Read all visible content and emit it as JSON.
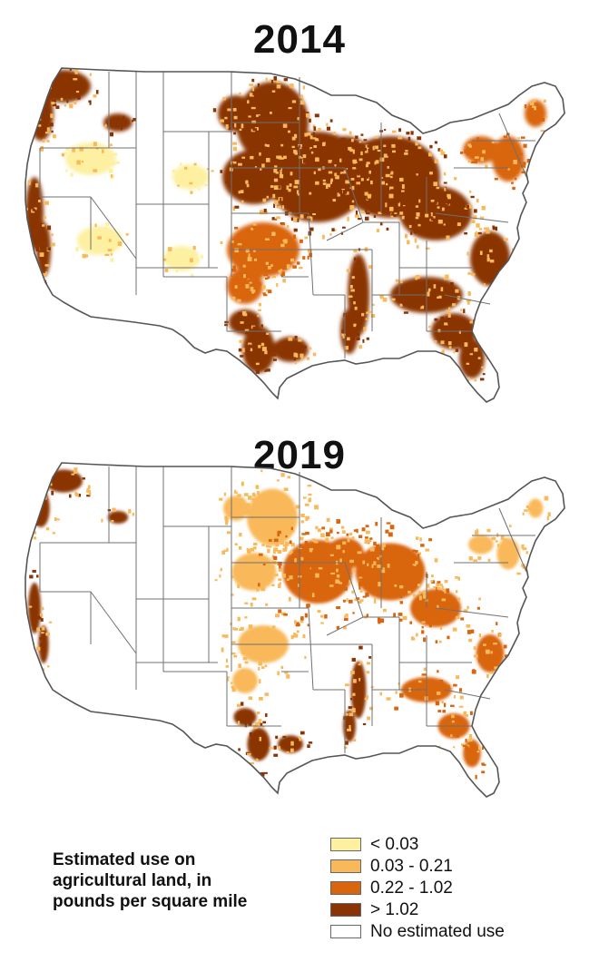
{
  "maps": [
    {
      "title": "2014",
      "intensity_by_region": {
        "northwest": "> 1.02",
        "california": "> 1.02",
        "northern_plains": "> 1.02",
        "corn_belt": "> 1.02",
        "southern_plains": "0.22 - 1.02",
        "texas_gulf": "> 1.02",
        "mississippi_delta": "> 1.02",
        "southeast": "> 1.02",
        "northeast": "0.22 - 1.02",
        "mountain_west": "< 0.03"
      }
    },
    {
      "title": "2019",
      "intensity_by_region": {
        "northwest": "> 1.02",
        "california": "> 1.02",
        "northern_plains": "0.03 - 0.21",
        "corn_belt": "0.22 - 1.02",
        "southern_plains": "0.03 - 0.21",
        "texas_gulf": "> 1.02",
        "mississippi_delta": "> 1.02",
        "southeast": "0.22 - 1.02",
        "northeast": "0.03 - 0.21",
        "mountain_west": "No estimated use"
      }
    }
  ],
  "legend": {
    "title_lines": [
      "Estimated use on",
      "agricultural land, in",
      "pounds per square mile"
    ],
    "items": [
      {
        "label": "< 0.03",
        "color": "#fdf0a0"
      },
      {
        "label": "0.03 - 0.21",
        "color": "#f9b95a"
      },
      {
        "label": "0.22 - 1.02",
        "color": "#d9650e"
      },
      {
        "label": "> 1.02",
        "color": "#8a3405"
      },
      {
        "label": "No estimated use",
        "color": "#ffffff"
      }
    ],
    "border_color": "#666666"
  }
}
